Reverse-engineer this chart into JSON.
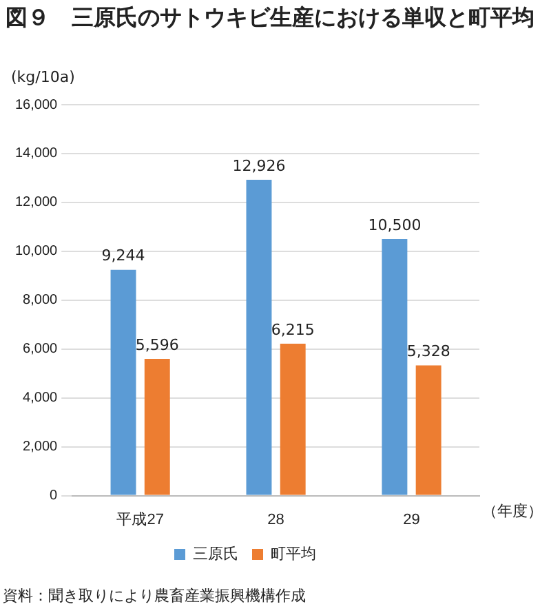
{
  "chart_data": {
    "type": "bar",
    "title": "図９　三原氏のサトウキビ生産における単収と町平均",
    "ylabel": "(kg/10a)",
    "xlabel": "（年度）",
    "categories": [
      "平成27",
      "28",
      "29"
    ],
    "series": [
      {
        "name": "三原氏",
        "color": "#5b9bd5",
        "values": [
          9244,
          12926,
          10500
        ],
        "value_labels": [
          "9,244",
          "12,926",
          "10,500"
        ]
      },
      {
        "name": "町平均",
        "color": "#ed7d31",
        "values": [
          5596,
          6215,
          5328
        ],
        "value_labels": [
          "5,596",
          "6,215",
          "5,328"
        ]
      }
    ],
    "ylim": [
      0,
      16000
    ],
    "yticks": [
      {
        "value": 0,
        "label": "0"
      },
      {
        "value": 2000,
        "label": "2,000"
      },
      {
        "value": 4000,
        "label": "4,000"
      },
      {
        "value": 6000,
        "label": "6,000"
      },
      {
        "value": 8000,
        "label": "8,000"
      },
      {
        "value": 10000,
        "label": "10,000"
      },
      {
        "value": 12000,
        "label": "12,000"
      },
      {
        "value": 14000,
        "label": "14,000"
      },
      {
        "value": 16000,
        "label": "16,000"
      }
    ],
    "grid": "y",
    "legend": "bottom",
    "annotations": [
      "資料：聞き取りにより農畜産業振興機構作成"
    ]
  }
}
